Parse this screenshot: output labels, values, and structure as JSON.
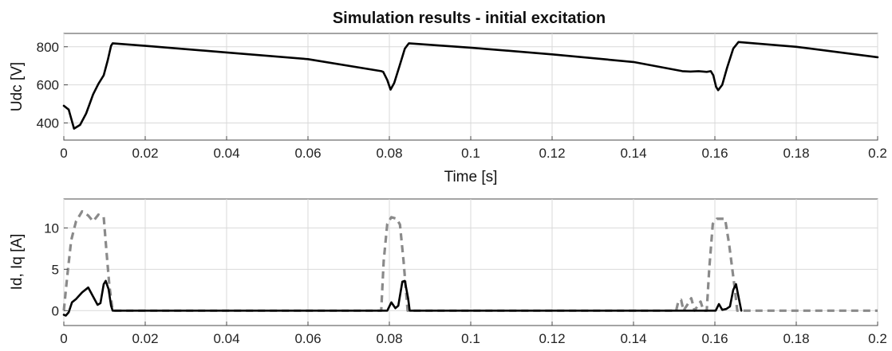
{
  "title": "Simulation results - initial excitation",
  "chart_data": [
    {
      "type": "line",
      "xlabel": "Time [s]",
      "ylabel": "Udc [V]",
      "xlim": [
        0,
        0.2
      ],
      "ylim": [
        310,
        870
      ],
      "grid": true,
      "x_ticks": [
        0,
        0.02,
        0.04,
        0.06,
        0.08,
        0.1,
        0.12,
        0.14,
        0.16,
        0.18,
        0.2
      ],
      "x_tick_labels": [
        "0",
        "0.02",
        "0.04",
        "0.06",
        "0.08",
        "0.1",
        "0.12",
        "0.14",
        "0.16",
        "0.18",
        "0.2"
      ],
      "y_ticks": [
        400,
        600,
        800
      ],
      "y_tick_labels": [
        "400",
        "600",
        "800"
      ],
      "series": [
        {
          "color": "#000000",
          "dash": "solid",
          "points": [
            [
              0,
              490
            ],
            [
              0.0012,
              470
            ],
            [
              0.0025,
              370
            ],
            [
              0.004,
              390
            ],
            [
              0.0055,
              450
            ],
            [
              0.0072,
              550
            ],
            [
              0.0085,
              605
            ],
            [
              0.0098,
              650
            ],
            [
              0.0108,
              730
            ],
            [
              0.0116,
              805
            ],
            [
              0.012,
              818
            ],
            [
              0.02,
              805
            ],
            [
              0.04,
              770
            ],
            [
              0.06,
              735
            ],
            [
              0.078,
              672
            ],
            [
              0.0785,
              668
            ],
            [
              0.0795,
              625
            ],
            [
              0.0803,
              575
            ],
            [
              0.0812,
              610
            ],
            [
              0.0825,
              700
            ],
            [
              0.0838,
              790
            ],
            [
              0.0848,
              818
            ],
            [
              0.1,
              795
            ],
            [
              0.12,
              760
            ],
            [
              0.14,
              720
            ],
            [
              0.152,
              672
            ],
            [
              0.154,
              670
            ],
            [
              0.156,
              672
            ],
            [
              0.158,
              668
            ],
            [
              0.159,
              672
            ],
            [
              0.1596,
              650
            ],
            [
              0.1603,
              590
            ],
            [
              0.1608,
              572
            ],
            [
              0.1618,
              600
            ],
            [
              0.163,
              690
            ],
            [
              0.1645,
              790
            ],
            [
              0.1658,
              825
            ],
            [
              0.18,
              800
            ],
            [
              0.2,
              745
            ]
          ]
        }
      ]
    },
    {
      "type": "line",
      "xlabel": "",
      "ylabel": "Id, Iq [A]",
      "xlim": [
        0,
        0.2
      ],
      "ylim": [
        -1.8,
        13.5
      ],
      "grid": true,
      "x_ticks": [
        0,
        0.02,
        0.04,
        0.06,
        0.08,
        0.1,
        0.12,
        0.14,
        0.16,
        0.18,
        0.2
      ],
      "x_tick_labels": [
        "0",
        "0.02",
        "0.04",
        "0.06",
        "0.08",
        "0.1",
        "0.12",
        "0.14",
        "0.16",
        "0.18",
        "0.2"
      ],
      "y_ticks": [
        0,
        5,
        10
      ],
      "y_tick_labels": [
        "0",
        "5",
        "10"
      ],
      "series": [
        {
          "color": "#8a8a8a",
          "dash": "dashed",
          "points": [
            [
              0,
              0
            ],
            [
              0.0008,
              4
            ],
            [
              0.0018,
              8.5
            ],
            [
              0.003,
              10.8
            ],
            [
              0.0045,
              12
            ],
            [
              0.006,
              11.5
            ],
            [
              0.0072,
              10.8
            ],
            [
              0.0085,
              11.6
            ],
            [
              0.0098,
              11.3
            ],
            [
              0.0105,
              7
            ],
            [
              0.0112,
              3
            ],
            [
              0.012,
              0
            ],
            [
              0.078,
              0
            ],
            [
              0.0786,
              6
            ],
            [
              0.0795,
              10.5
            ],
            [
              0.0805,
              11.3
            ],
            [
              0.0818,
              11.1
            ],
            [
              0.0826,
              10.4
            ],
            [
              0.0835,
              6
            ],
            [
              0.0845,
              0
            ],
            [
              0.1505,
              0
            ],
            [
              0.151,
              1.1
            ],
            [
              0.1517,
              1.3
            ],
            [
              0.1523,
              0
            ],
            [
              0.1535,
              0.9
            ],
            [
              0.1542,
              1.5
            ],
            [
              0.155,
              0
            ],
            [
              0.1565,
              1.1
            ],
            [
              0.1572,
              0
            ],
            [
              0.158,
              0
            ],
            [
              0.1586,
              5
            ],
            [
              0.1595,
              10.5
            ],
            [
              0.1605,
              11.1
            ],
            [
              0.1625,
              11.1
            ],
            [
              0.1635,
              8
            ],
            [
              0.1648,
              3
            ],
            [
              0.1655,
              0
            ],
            [
              0.2,
              0
            ]
          ]
        },
        {
          "color": "#000000",
          "dash": "solid",
          "points": [
            [
              0,
              -0.5
            ],
            [
              0.0005,
              -0.6
            ],
            [
              0.0012,
              -0.2
            ],
            [
              0.002,
              1.0
            ],
            [
              0.003,
              1.4
            ],
            [
              0.0045,
              2.2
            ],
            [
              0.006,
              2.8
            ],
            [
              0.0072,
              1.7
            ],
            [
              0.0083,
              0.7
            ],
            [
              0.009,
              0.9
            ],
            [
              0.0098,
              3.2
            ],
            [
              0.0103,
              3.6
            ],
            [
              0.011,
              2.6
            ],
            [
              0.0116,
              0.6
            ],
            [
              0.012,
              0
            ],
            [
              0.0795,
              0
            ],
            [
              0.0805,
              1.0
            ],
            [
              0.0815,
              0.3
            ],
            [
              0.0822,
              0.6
            ],
            [
              0.0832,
              3.5
            ],
            [
              0.0838,
              3.6
            ],
            [
              0.0846,
              1.5
            ],
            [
              0.085,
              0
            ],
            [
              0.1602,
              0
            ],
            [
              0.161,
              0.8
            ],
            [
              0.1618,
              0.1
            ],
            [
              0.1628,
              0.2
            ],
            [
              0.1637,
              0.5
            ],
            [
              0.1645,
              2.5
            ],
            [
              0.1652,
              3.2
            ],
            [
              0.166,
              1.2
            ],
            [
              0.1665,
              0
            ]
          ]
        }
      ]
    }
  ]
}
